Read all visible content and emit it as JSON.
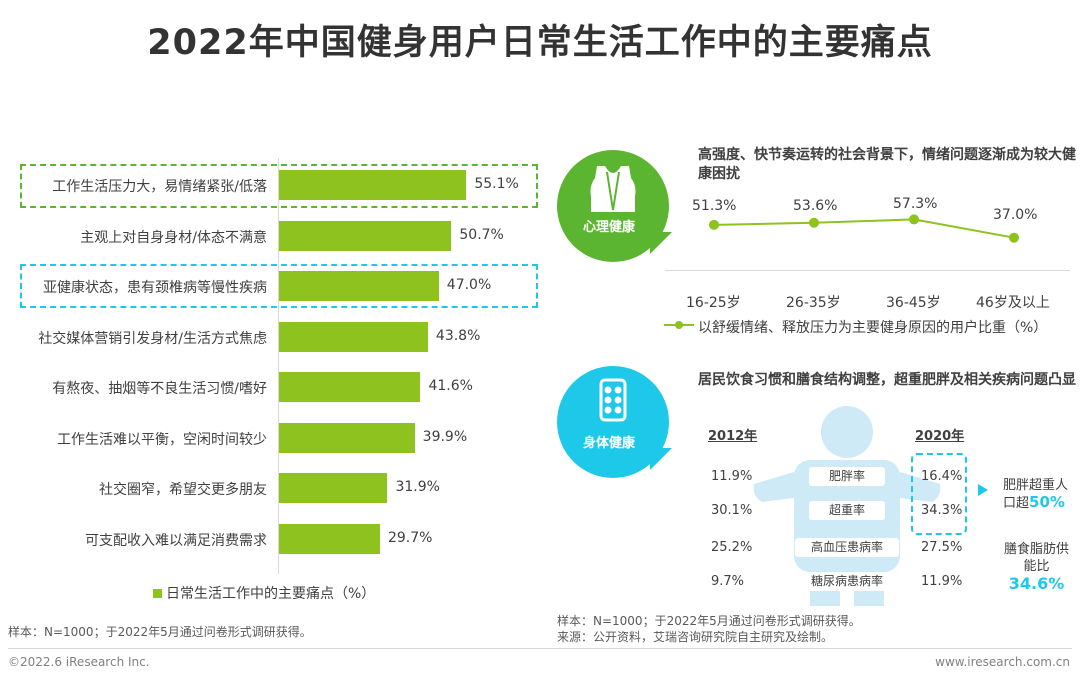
{
  "title": "2022年中国健身用户日常生活工作中的主要痛点",
  "colors": {
    "bar": "#8dc21f",
    "psych": "#5cb531",
    "body": "#1ec8e8",
    "dash_green": "#5cb531",
    "dash_blue": "#1ec8e8"
  },
  "chart_data": [
    {
      "type": "bar",
      "orientation": "horizontal",
      "categories": [
        "工作生活压力大，易情绪紧张/低落",
        "主观上对自身身材/体态不满意",
        "亚健康状态，患有颈椎病等慢性疾病",
        "社交媒体营销引发身材/生活方式焦虑",
        "有熬夜、抽烟等不良生活习惯/嗜好",
        "工作生活难以平衡，空闲时间较少",
        "社交圈窄，希望交更多朋友",
        "可支配收入难以满足消费需求"
      ],
      "values": [
        55.1,
        50.7,
        47.0,
        43.8,
        41.6,
        39.9,
        31.9,
        29.7
      ],
      "value_labels": [
        "55.1%",
        "50.7%",
        "47.0%",
        "43.8%",
        "41.6%",
        "39.9%",
        "31.9%",
        "29.7%"
      ],
      "legend": "日常生活工作中的主要痛点（%）",
      "highlighted": [
        0,
        2
      ]
    },
    {
      "type": "line",
      "title": "高强度、快节奏运转的社会背景下，情绪问题逐渐成为较大健康困扰",
      "categories": [
        "16-25岁",
        "26-35岁",
        "36-45岁",
        "46岁及以上"
      ],
      "values": [
        51.3,
        53.6,
        57.3,
        37.0
      ],
      "value_labels": [
        "51.3%",
        "53.6%",
        "57.3%",
        "37.0%"
      ],
      "legend": "以舒缓情绪、释放压力为主要健身原因的用户比重（%）"
    },
    {
      "type": "table",
      "title": "居民饮食习惯和膳食结构调整，超重肥胖及相关疾病问题凸显",
      "columns": [
        "2012年",
        "2020年"
      ],
      "rows": [
        {
          "metric": "肥胖率",
          "y2012": "11.9%",
          "y2020": "16.4%"
        },
        {
          "metric": "超重率",
          "y2012": "30.1%",
          "y2020": "34.3%"
        },
        {
          "metric": "高血压患病率",
          "y2012": "25.2%",
          "y2020": "27.5%"
        },
        {
          "metric": "糖尿病患病率",
          "y2012": "9.7%",
          "y2020": "11.9%"
        }
      ]
    }
  ],
  "psych": {
    "badge": "心理健康"
  },
  "body_health": {
    "badge": "身体健康",
    "callout1_prefix": "肥胖超重人",
    "callout1_line2": "口超",
    "callout1_value": "50%",
    "callout2_line1": "膳食脂肪供",
    "callout2_line2": "能比",
    "callout2_value": "34.6%"
  },
  "notes": {
    "left_sample": "样本：N=1000；于2022年5月通过问卷形式调研获得。",
    "right_sample": "样本：N=1000；于2022年5月通过问卷形式调研获得。",
    "right_source": "来源：公开资料，艾瑞咨询研究院自主研究及绘制。"
  },
  "footer": {
    "left": "©2022.6 iResearch Inc.",
    "right": "www.iresearch.com.cn"
  }
}
